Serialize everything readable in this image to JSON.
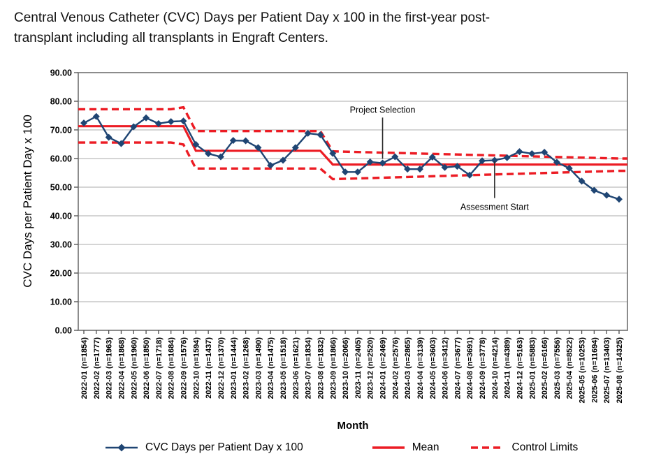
{
  "title": {
    "line1": "Central Venous Catheter (CVC) Days per Patient Day x 100 in the first-year post-",
    "line2": "transplant including all transplants in Engraft Centers."
  },
  "colors": {
    "series": "#1F4573",
    "mean": "#EC1C24",
    "control_limits": "#EC1C24",
    "grid": "#ABABAB",
    "plot_border": "#7F7F7F",
    "tick": "#4D4D4D",
    "annotation_line": "#2B2B2B",
    "text": "#000000"
  },
  "chart_data": {
    "type": "line",
    "title": "Central Venous Catheter (CVC) Days per Patient Day x 100 in the first-year post-transplant including all transplants in Engraft Centers.",
    "xlabel": "Month",
    "ylabel": "CVC Days per Patient Day x 100",
    "ylim": [
      0,
      90
    ],
    "grid": true,
    "legend_position": "bottom",
    "ytick_labels": [
      "90.00",
      "80.00",
      "70.00",
      "60.00",
      "50.00",
      "40.00",
      "30.00",
      "20.00",
      "10.00",
      "0.00"
    ],
    "categories": [
      "2022-01 (n=1854)",
      "2022-02 (n=1777)",
      "2022-03 (n=1963)",
      "2022-04 (n=1868)",
      "2022-05 (n=1960)",
      "2022-06 (n=1850)",
      "2022-07 (n=1718)",
      "2022-08 (n=1684)",
      "2022-09 (n=1576)",
      "2022-10 (n=1594)",
      "2022-11 (n=1437)",
      "2022-12 (n=1370)",
      "2023-01 (n=1444)",
      "2023-02 (n=1268)",
      "2023-03 (n=1490)",
      "2023-04 (n=1475)",
      "2023-05 (n=1518)",
      "2023-06 (n=1621)",
      "2023-07 (n=1834)",
      "2023-08 (n=1832)",
      "2023-09 (n=1866)",
      "2023-10 (n=2066)",
      "2023-11 (n=2405)",
      "2023-12 (n=2520)",
      "2024-01 (n=2469)",
      "2024-02 (n=2576)",
      "2024-03 (n=2865)",
      "2024-04 (n=3139)",
      "2024-05 (n=3603)",
      "2024-06 (n=3412)",
      "2024-07 (n=3677)",
      "2024-08 (n=3691)",
      "2024-09 (n=3778)",
      "2024-10 (n=4214)",
      "2024-11 (n=4389)",
      "2024-12 (n=5163)",
      "2025-01 (n=5883)",
      "2025-02 (n=6166)",
      "2025-03 (n=7556)",
      "2025-04 (n=8522)",
      "2025-05 (n=10253)",
      "2025-06 (n=11694)",
      "2025-07 (n=13403)",
      "2025-08 (n=14325)"
    ],
    "series": [
      {
        "name": "CVC Days per Patient Day x 100",
        "style": "line-diamond",
        "values": [
          72.4,
          74.7,
          67.4,
          65.2,
          71.1,
          74.2,
          72.2,
          72.9,
          73.1,
          64.9,
          61.7,
          60.6,
          66.3,
          66.2,
          63.8,
          57.6,
          59.4,
          63.8,
          68.8,
          68.3,
          61.8,
          55.3,
          55.3,
          58.8,
          58.4,
          60.6,
          56.3,
          56.3,
          60.5,
          56.9,
          57.3,
          54.2,
          59.2,
          59.4,
          60.3,
          62.4,
          61.7,
          62.2,
          58.7,
          56.6,
          52.1,
          48.9,
          47.2,
          45.8
        ]
      },
      {
        "name": "Mean",
        "style": "solid",
        "values": [
          71.3,
          71.3,
          71.3,
          71.3,
          71.3,
          71.3,
          71.3,
          71.3,
          71.3,
          62.7,
          62.7,
          62.7,
          62.7,
          62.7,
          62.7,
          62.7,
          62.7,
          62.7,
          62.7,
          62.7,
          57.9,
          57.9,
          57.9,
          57.9,
          57.9,
          57.9,
          57.9,
          57.9,
          57.9,
          57.9,
          57.9,
          57.9,
          57.9,
          57.9,
          57.9,
          57.9,
          57.9,
          57.9,
          57.9,
          57.9,
          57.9,
          57.9,
          57.9,
          57.9
        ]
      },
      {
        "name": "Control Limits",
        "style": "dashed",
        "values_upper": [
          77.2,
          77.2,
          77.2,
          77.2,
          77.2,
          77.2,
          77.2,
          77.2,
          77.9,
          69.6,
          69.6,
          69.6,
          69.6,
          69.6,
          69.6,
          69.6,
          69.6,
          69.6,
          69.6,
          69.6,
          62.5,
          62.39,
          62.28,
          62.17,
          62.07,
          61.96,
          61.85,
          61.74,
          61.63,
          61.52,
          61.41,
          61.3,
          61.2,
          61.09,
          60.98,
          60.87,
          60.76,
          60.65,
          60.54,
          60.43,
          60.33,
          60.22,
          60.11,
          60.0
        ],
        "values_lower": [
          65.6,
          65.6,
          65.6,
          65.6,
          65.6,
          65.6,
          65.6,
          65.6,
          64.9,
          56.5,
          56.5,
          56.5,
          56.5,
          56.5,
          56.5,
          56.5,
          56.5,
          56.5,
          56.5,
          56.5,
          52.8,
          52.93,
          53.05,
          53.18,
          53.3,
          53.43,
          53.56,
          53.68,
          53.81,
          53.93,
          54.06,
          54.19,
          54.31,
          54.44,
          54.56,
          54.69,
          54.82,
          54.94,
          55.07,
          55.19,
          55.32,
          55.45,
          55.57,
          55.7
        ]
      }
    ],
    "annotations": [
      {
        "label": "Project Selection",
        "category": "2024-01 (n=2469)",
        "category_index": 24,
        "line_top_value": 74.3,
        "line_bottom_value": 59.9,
        "text_side": "above"
      },
      {
        "label": "Assessment Start",
        "category": "2024-10 (n=4214)",
        "category_index": 33,
        "line_top_value": 59.0,
        "line_bottom_value": 46.2,
        "text_side": "below"
      }
    ]
  }
}
